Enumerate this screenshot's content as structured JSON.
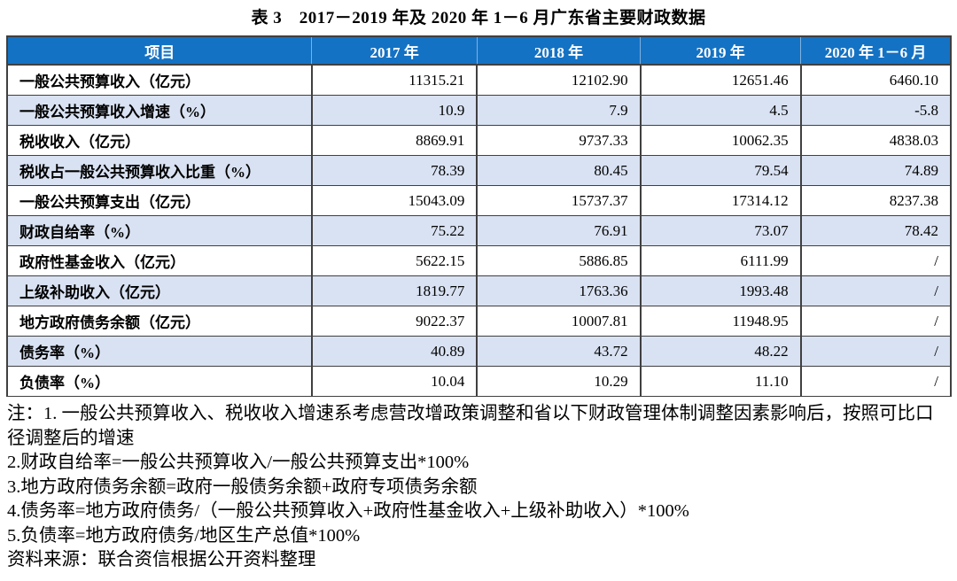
{
  "title": "表 3　2017－2019 年及 2020 年 1－6 月广东省主要财政数据",
  "table": {
    "columns": [
      "项目",
      "2017 年",
      "2018 年",
      "2019 年",
      "2020 年 1－6 月"
    ],
    "rows": [
      {
        "label": "一般公共预算收入（亿元）",
        "values": [
          "11315.21",
          "12102.90",
          "12651.46",
          "6460.10"
        ]
      },
      {
        "label": "一般公共预算收入增速（%）",
        "values": [
          "10.9",
          "7.9",
          "4.5",
          "-5.8"
        ]
      },
      {
        "label": "税收收入（亿元）",
        "values": [
          "8869.91",
          "9737.33",
          "10062.35",
          "4838.03"
        ]
      },
      {
        "label": "税收占一般公共预算收入比重（%）",
        "values": [
          "78.39",
          "80.45",
          "79.54",
          "74.89"
        ]
      },
      {
        "label": "一般公共预算支出（亿元）",
        "values": [
          "15043.09",
          "15737.37",
          "17314.12",
          "8237.38"
        ]
      },
      {
        "label": "财政自给率（%）",
        "values": [
          "75.22",
          "76.91",
          "73.07",
          "78.42"
        ]
      },
      {
        "label": "政府性基金收入（亿元）",
        "values": [
          "5622.15",
          "5886.85",
          "6111.99",
          "/"
        ]
      },
      {
        "label": "上级补助收入（亿元）",
        "values": [
          "1819.77",
          "1763.36",
          "1993.48",
          "/"
        ]
      },
      {
        "label": "地方政府债务余额（亿元）",
        "values": [
          "9022.37",
          "10007.81",
          "11948.95",
          "/"
        ]
      },
      {
        "label": "债务率（%）",
        "values": [
          "40.89",
          "43.72",
          "48.22",
          "/"
        ]
      },
      {
        "label": "负债率（%）",
        "values": [
          "10.04",
          "10.29",
          "11.10",
          "/"
        ]
      }
    ]
  },
  "notes": [
    "注：1. 一般公共预算收入、税收收入增速系考虑营改增政策调整和省以下财政管理体制调整因素影响后，按照可比口径调整后的增速",
    "2.财政自给率=一般公共预算收入/一般公共预算支出*100%",
    "3.地方政府债务余额=政府一般债务余额+政府专项债务余额",
    "4.债务率=地方政府债务/（一般公共预算收入+政府性基金收入+上级补助收入）*100%",
    "5.负债率=地方政府债务/地区生产总值*100%",
    "资料来源：联合资信根据公开资料整理"
  ],
  "colors": {
    "header_bg": "#1472C4",
    "header_text": "#FFFFFF",
    "row_bg": "#FFFFFF",
    "row_alt_bg": "#D9E2F2",
    "border": "#404040",
    "text": "#000000"
  }
}
